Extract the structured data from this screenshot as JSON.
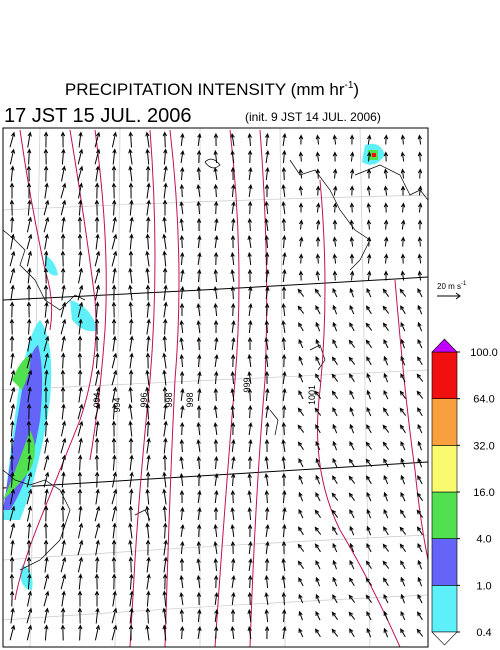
{
  "map": {
    "title": {
      "main": "PRECIPITATION INTENSITY (mm hr",
      "exponent": "-1",
      "close": ")"
    },
    "valid_time": "17 JST 15 JUL. 2006",
    "init_time": "(init. 9 JST 14 JUL. 2006)",
    "vector_scale": {
      "main": "20 m s",
      "exponent": "-1"
    },
    "contour_labels": [
      "994",
      "994",
      "996",
      "998",
      "998",
      "999",
      "1001"
    ],
    "colorbar": {
      "ticks": [
        {
          "value": 0.4,
          "label": "0.4"
        },
        {
          "value": 1,
          "label": "1.0"
        },
        {
          "value": 4,
          "label": "4.0"
        },
        {
          "value": 16,
          "label": "16.0"
        },
        {
          "value": 32,
          "label": "32.0"
        },
        {
          "value": 64,
          "label": "64.0"
        },
        {
          "value": 100,
          "label": "100.0"
        }
      ],
      "colors": [
        "#5ef0f8",
        "#6464f8",
        "#50e050",
        "#fafa6e",
        "#f8a040",
        "#f01010"
      ],
      "under_color": "#ffffff",
      "over_color": "#c000ff"
    }
  }
}
